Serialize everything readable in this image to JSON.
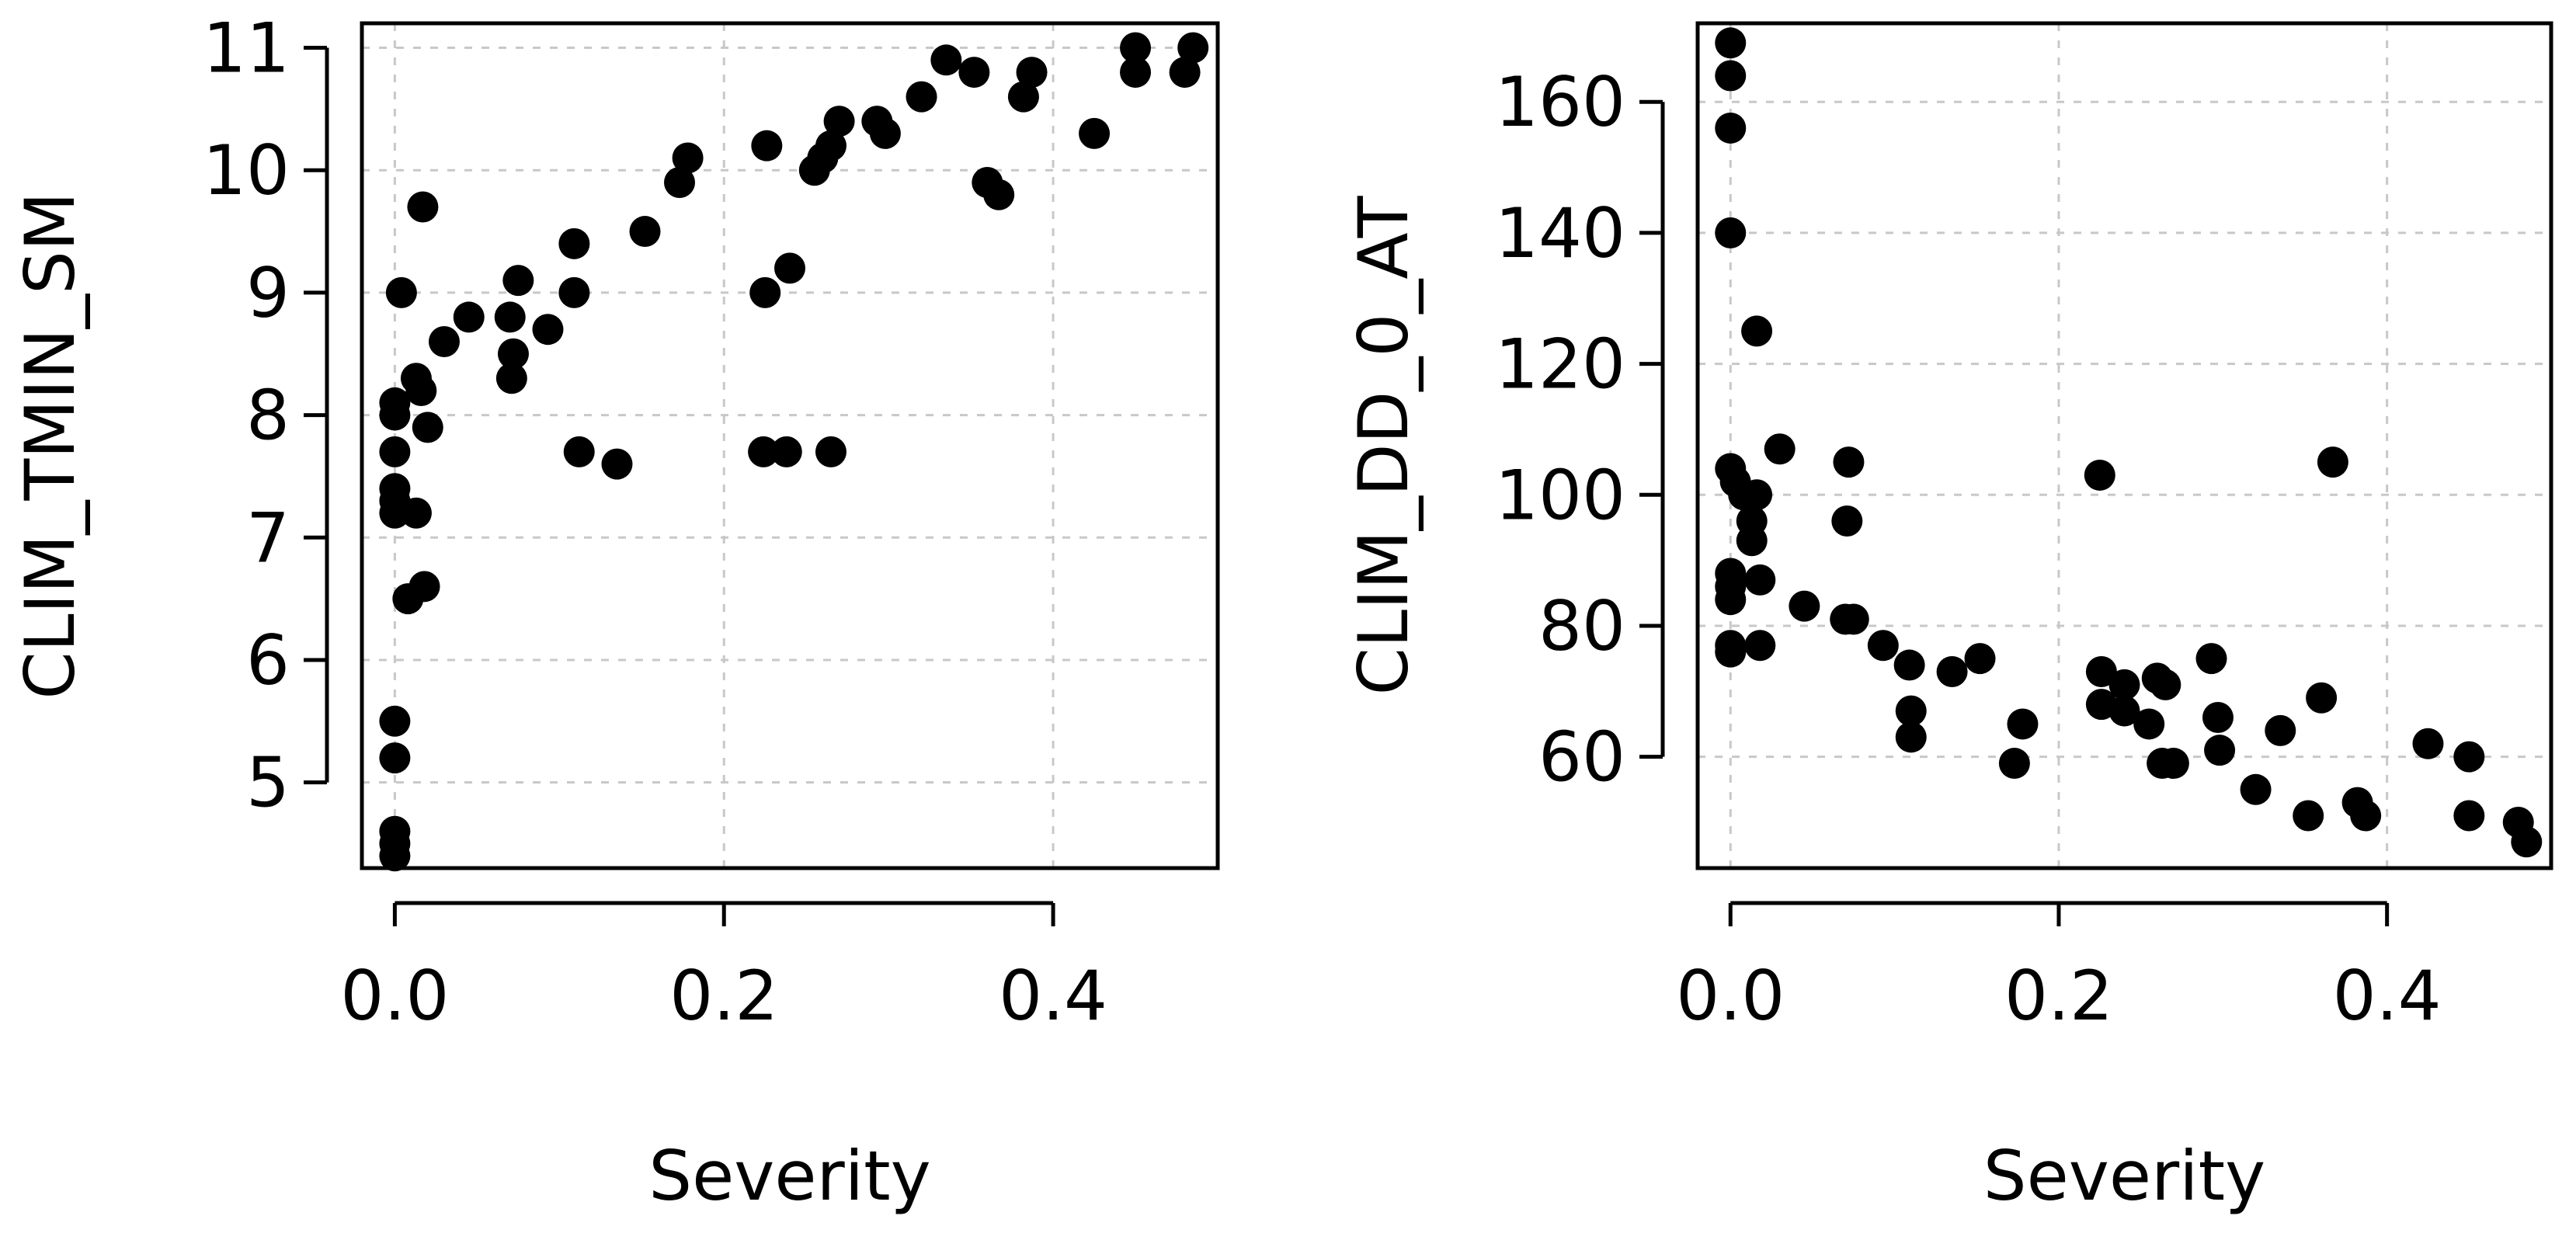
{
  "chart_data": [
    {
      "type": "scatter",
      "xlabel": "Severity",
      "ylabel": "CLIM_TMIN_SM",
      "xticks": [
        0.0,
        0.2,
        0.4
      ],
      "xtick_labels": [
        "0.0",
        "0.2",
        "0.4"
      ],
      "yticks": [
        5,
        6,
        7,
        8,
        9,
        10,
        11
      ],
      "ytick_labels": [
        "5",
        "6",
        "7",
        "8",
        "9",
        "10",
        "11"
      ],
      "xlim": [
        -0.02,
        0.5
      ],
      "ylim": [
        4.3,
        11.2
      ],
      "grid": true,
      "points": [
        [
          0.0,
          4.4
        ],
        [
          0.0,
          4.5
        ],
        [
          0.0,
          4.6
        ],
        [
          0.0,
          5.2
        ],
        [
          0.0,
          5.5
        ],
        [
          0.0,
          7.2
        ],
        [
          0.0,
          7.3
        ],
        [
          0.0,
          7.4
        ],
        [
          0.0,
          7.7
        ],
        [
          0.0,
          8.0
        ],
        [
          0.0,
          8.1
        ],
        [
          0.004,
          9.0
        ],
        [
          0.008,
          6.5
        ],
        [
          0.013,
          8.3
        ],
        [
          0.013,
          7.2
        ],
        [
          0.016,
          8.2
        ],
        [
          0.017,
          9.7
        ],
        [
          0.018,
          6.6
        ],
        [
          0.02,
          7.9
        ],
        [
          0.03,
          8.6
        ],
        [
          0.045,
          8.8
        ],
        [
          0.07,
          8.8
        ],
        [
          0.071,
          8.3
        ],
        [
          0.072,
          8.5
        ],
        [
          0.075,
          9.1
        ],
        [
          0.093,
          8.7
        ],
        [
          0.109,
          9.0
        ],
        [
          0.109,
          9.4
        ],
        [
          0.112,
          7.7
        ],
        [
          0.135,
          7.6
        ],
        [
          0.152,
          9.5
        ],
        [
          0.173,
          9.9
        ],
        [
          0.178,
          10.1
        ],
        [
          0.224,
          7.7
        ],
        [
          0.225,
          9.0
        ],
        [
          0.226,
          10.2
        ],
        [
          0.238,
          7.7
        ],
        [
          0.24,
          9.2
        ],
        [
          0.255,
          10.0
        ],
        [
          0.26,
          10.1
        ],
        [
          0.265,
          10.2
        ],
        [
          0.265,
          7.7
        ],
        [
          0.27,
          10.4
        ],
        [
          0.293,
          10.4
        ],
        [
          0.298,
          10.3
        ],
        [
          0.32,
          10.6
        ],
        [
          0.335,
          10.9
        ],
        [
          0.352,
          10.8
        ],
        [
          0.36,
          9.9
        ],
        [
          0.367,
          9.8
        ],
        [
          0.382,
          10.6
        ],
        [
          0.387,
          10.8
        ],
        [
          0.425,
          10.3
        ],
        [
          0.45,
          10.8
        ],
        [
          0.45,
          11.0
        ],
        [
          0.48,
          10.8
        ],
        [
          0.485,
          11.0
        ]
      ]
    },
    {
      "type": "scatter",
      "xlabel": "Severity",
      "ylabel": "CLIM_DD_0_AT",
      "xticks": [
        0.0,
        0.2,
        0.4
      ],
      "xtick_labels": [
        "0.0",
        "0.2",
        "0.4"
      ],
      "yticks": [
        60,
        80,
        100,
        120,
        140,
        160
      ],
      "ytick_labels": [
        "60",
        "80",
        "100",
        "120",
        "140",
        "160"
      ],
      "xlim": [
        -0.02,
        0.5
      ],
      "ylim": [
        43,
        172
      ],
      "grid": true,
      "points": [
        [
          0.0,
          169
        ],
        [
          0.0,
          164
        ],
        [
          0.0,
          156
        ],
        [
          0.0,
          140
        ],
        [
          0.0,
          104
        ],
        [
          0.0,
          88
        ],
        [
          0.0,
          86
        ],
        [
          0.0,
          84
        ],
        [
          0.0,
          77
        ],
        [
          0.0,
          76
        ],
        [
          0.003,
          102
        ],
        [
          0.008,
          100
        ],
        [
          0.013,
          96
        ],
        [
          0.013,
          93
        ],
        [
          0.016,
          100
        ],
        [
          0.016,
          125
        ],
        [
          0.018,
          87
        ],
        [
          0.018,
          77
        ],
        [
          0.03,
          107
        ],
        [
          0.045,
          83
        ],
        [
          0.07,
          81
        ],
        [
          0.071,
          96
        ],
        [
          0.072,
          105
        ],
        [
          0.075,
          81
        ],
        [
          0.093,
          77
        ],
        [
          0.109,
          74
        ],
        [
          0.11,
          67
        ],
        [
          0.11,
          63
        ],
        [
          0.135,
          73
        ],
        [
          0.152,
          75
        ],
        [
          0.173,
          59
        ],
        [
          0.178,
          65
        ],
        [
          0.225,
          103
        ],
        [
          0.226,
          73
        ],
        [
          0.226,
          68
        ],
        [
          0.24,
          71
        ],
        [
          0.24,
          67
        ],
        [
          0.255,
          65
        ],
        [
          0.26,
          72
        ],
        [
          0.263,
          59
        ],
        [
          0.265,
          71
        ],
        [
          0.27,
          59
        ],
        [
          0.293,
          75
        ],
        [
          0.297,
          66
        ],
        [
          0.298,
          61
        ],
        [
          0.32,
          55
        ],
        [
          0.335,
          64
        ],
        [
          0.352,
          51
        ],
        [
          0.36,
          69
        ],
        [
          0.367,
          105
        ],
        [
          0.382,
          53
        ],
        [
          0.387,
          51
        ],
        [
          0.425,
          62
        ],
        [
          0.45,
          60
        ],
        [
          0.45,
          51
        ],
        [
          0.48,
          50
        ],
        [
          0.485,
          47
        ]
      ]
    }
  ]
}
